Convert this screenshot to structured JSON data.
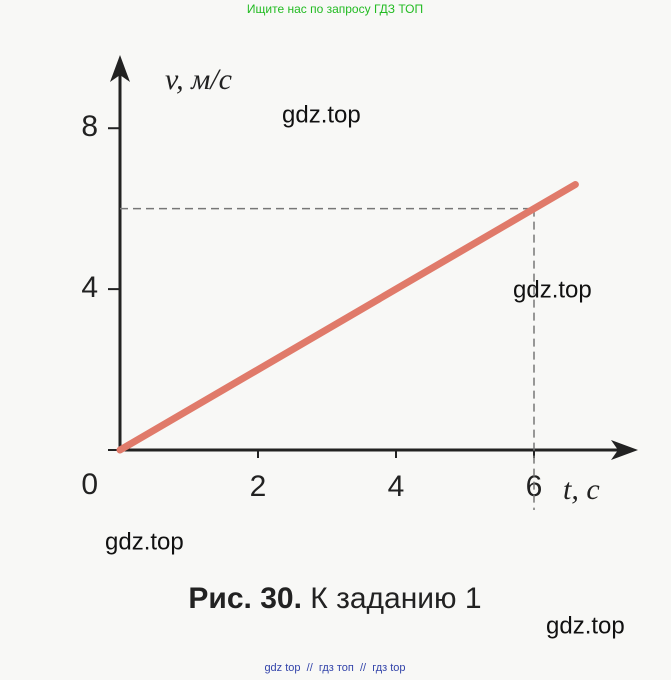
{
  "chart_data": {
    "type": "line",
    "y_label": "v, м/с",
    "x_label": "t, с",
    "x": [
      0,
      6.6
    ],
    "series": [
      {
        "color": "#e07a6a",
        "values": [
          0,
          6.6
        ]
      }
    ],
    "xlim": [
      0,
      7
    ],
    "xticks": [
      2,
      4,
      6
    ],
    "ylim": [
      0,
      9
    ],
    "yticks": [
      0,
      4,
      8
    ],
    "guide": {
      "x": 6,
      "y": 6
    },
    "caption_bold": "Рис. 30.",
    "caption": "К заданию 1"
  },
  "watermarks": {
    "top": "Ищите нас по запросу ГДЗ ТОП",
    "marks": [
      "gdz.top",
      "gdz.top",
      "gdz.top",
      "gdz.top"
    ],
    "bottom": "gdz top  //  гдз топ  //  гдз top"
  }
}
